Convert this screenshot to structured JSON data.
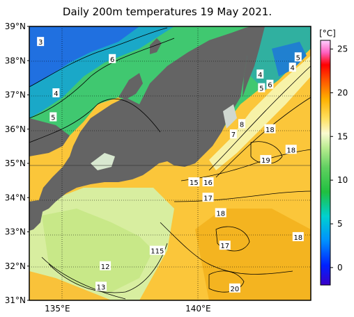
{
  "title": "Daily 200m temperatures 19 May 2021.",
  "map": {
    "lat_labels": [
      "39°N",
      "38°N",
      "37°N",
      "36°N",
      "35°N",
      "34°N",
      "33°N",
      "32°N",
      "31°N"
    ],
    "lon_labels": [
      "135°E",
      "140°E"
    ],
    "lat_range": [
      31,
      39
    ],
    "lon_range": [
      134,
      144
    ]
  },
  "colorbar": {
    "unit": "[°C]",
    "tick_labels": [
      "25",
      "20",
      "15",
      "10",
      "5",
      "0"
    ],
    "range": [
      -2,
      26
    ]
  },
  "contour_labels": [
    {
      "text": "3",
      "lon": 134.4,
      "lat": 38.55
    },
    {
      "text": "6",
      "lon": 136.95,
      "lat": 38.05
    },
    {
      "text": "4",
      "lon": 134.95,
      "lat": 37.05
    },
    {
      "text": "5",
      "lon": 134.85,
      "lat": 36.35
    },
    {
      "text": "5",
      "lon": 143.55,
      "lat": 38.1
    },
    {
      "text": "4",
      "lon": 143.35,
      "lat": 37.8
    },
    {
      "text": "4",
      "lon": 142.2,
      "lat": 37.6
    },
    {
      "text": "6",
      "lon": 142.55,
      "lat": 37.3
    },
    {
      "text": "5",
      "lon": 142.25,
      "lat": 37.2
    },
    {
      "text": "8",
      "lon": 141.55,
      "lat": 36.15
    },
    {
      "text": "7",
      "lon": 141.25,
      "lat": 35.85
    },
    {
      "text": "18",
      "lon": 142.55,
      "lat": 36.0
    },
    {
      "text": "18",
      "lon": 143.3,
      "lat": 35.4
    },
    {
      "text": "19",
      "lon": 142.4,
      "lat": 35.1
    },
    {
      "text": "15",
      "lon": 139.85,
      "lat": 34.45
    },
    {
      "text": "16",
      "lon": 140.35,
      "lat": 34.45
    },
    {
      "text": "17",
      "lon": 140.35,
      "lat": 34.0
    },
    {
      "text": "18",
      "lon": 140.8,
      "lat": 33.55
    },
    {
      "text": "17",
      "lon": 140.95,
      "lat": 32.6
    },
    {
      "text": "18",
      "lon": 143.55,
      "lat": 32.85
    },
    {
      "text": "115",
      "lon": 138.55,
      "lat": 32.45
    },
    {
      "text": "12",
      "lon": 136.7,
      "lat": 32.0
    },
    {
      "text": "13",
      "lon": 136.55,
      "lat": 31.4
    },
    {
      "text": "20",
      "lon": 141.3,
      "lat": 31.35
    }
  ]
}
